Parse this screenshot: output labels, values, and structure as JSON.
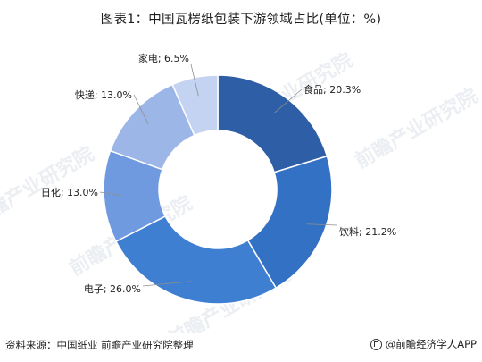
{
  "chart_data": {
    "type": "pie",
    "title": "图表1：中国瓦楞纸包装下游领域占比(单位：%)",
    "categories": [
      "食品",
      "饮料",
      "电子",
      "日化",
      "快递",
      "家电"
    ],
    "values": [
      20.3,
      21.2,
      26.0,
      13.0,
      13.0,
      6.5
    ],
    "labels": [
      "食品; 20.3%",
      "饮料; 21.2%",
      "电子; 26.0%",
      "日化; 13.0%",
      "快递; 13.0%",
      "家电; 6.5%"
    ],
    "donut": true,
    "colors": [
      "#2e5ea6",
      "#3271c4",
      "#3f7fd2",
      "#6f9ae0",
      "#9cb6e8",
      "#c4d3f1"
    ]
  },
  "footer": {
    "source": "资料来源：中国纸业 前瞻产业研究院整理",
    "brand": "@前瞻经济学人APP"
  },
  "watermark": {
    "text": "前瞻产业研究院"
  }
}
